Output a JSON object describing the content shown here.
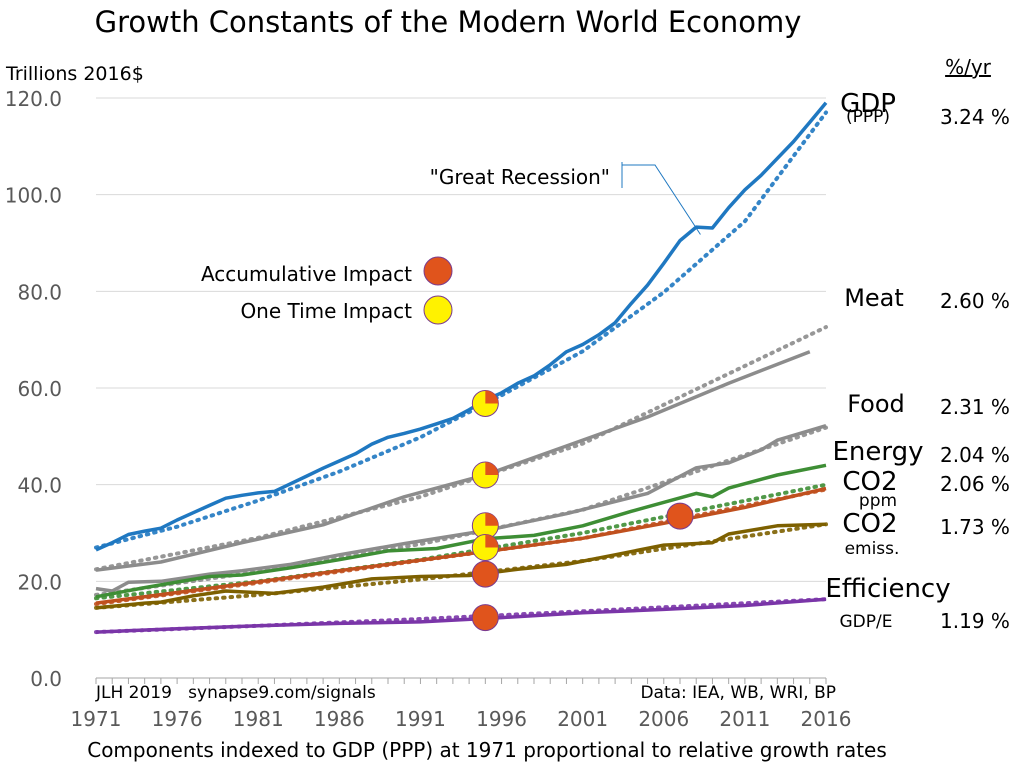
{
  "chart_data": {
    "type": "line",
    "title": "Growth Constants of the Modern World Economy",
    "ylabel": "Trillions 2016$",
    "xlabel": "Components indexed to GDP (PPP) at 1971 proportional to relative growth rates",
    "rate_header": "%/yr",
    "ylim": [
      0,
      120
    ],
    "xlim": [
      1971,
      2016
    ],
    "yticks": [
      "0.0",
      "20.0",
      "40.0",
      "60.0",
      "80.0",
      "100.0",
      "120.0"
    ],
    "xticks": [
      "1971",
      "1976",
      "1981",
      "1986",
      "1991",
      "1996",
      "2001",
      "2006",
      "2011",
      "2016"
    ],
    "grid": true,
    "credit_left": "JLH 2019   synapse9.com/signals",
    "credit_right": "Data: IEA, WB, WRI, BP",
    "legend": {
      "placement": "left",
      "items": [
        {
          "label": "Accumulative Impact",
          "color": "#E0541C"
        },
        {
          "label": "One Time Impact",
          "color": "#FFF200"
        }
      ]
    },
    "annotation": {
      "text": "\"Great Recession\"",
      "x": 2009,
      "y": 93
    },
    "series": [
      {
        "name": "GDP",
        "subname": "(PPP)",
        "rate": "3.24 %",
        "color": "#1F78C1",
        "x": [
          1971,
          1972,
          1973,
          1974,
          1975,
          1976,
          1977,
          1978,
          1979,
          1980,
          1981,
          1982,
          1983,
          1984,
          1985,
          1986,
          1987,
          1988,
          1989,
          1990,
          1991,
          1992,
          1993,
          1994,
          1995,
          1996,
          1997,
          1998,
          1999,
          2000,
          2001,
          2002,
          2003,
          2004,
          2005,
          2006,
          2007,
          2008,
          2009,
          2010,
          2011,
          2012,
          2013,
          2014,
          2015,
          2016
        ],
        "values": [
          26.5,
          28,
          29.7,
          30.4,
          31,
          32.7,
          34.2,
          35.7,
          37.2,
          37.8,
          38.3,
          38.6,
          40.2,
          41.8,
          43.4,
          44.9,
          46.4,
          48.4,
          49.8,
          50.6,
          51.5,
          52.6,
          53.7,
          55.5,
          57.5,
          59,
          61,
          62.5,
          64.8,
          67.5,
          69,
          71,
          73.5,
          77.5,
          81.3,
          85.8,
          90.5,
          93.3,
          93.1,
          97.3,
          101,
          104,
          107.5,
          111,
          115,
          119
        ]
      },
      {
        "name": "Meat",
        "rate": "2.60 %",
        "color": "#8C8C8C",
        "x": [
          1971,
          1975,
          1980,
          1985,
          1990,
          1995,
          2000,
          2005,
          2010,
          2015
        ],
        "values": [
          22.3,
          24,
          28,
          31.7,
          37.5,
          42,
          48,
          54,
          61,
          67.5
        ]
      },
      {
        "name": "Food",
        "rate": "2.31 %",
        "color": "#8C8C8C",
        "x": [
          1971,
          1972,
          1973,
          1975,
          1978,
          1980,
          1983,
          1986,
          1990,
          1995,
          2000,
          2005,
          2008,
          2010,
          2012,
          2013,
          2016
        ],
        "values": [
          18.5,
          18,
          19.8,
          20,
          21.5,
          22.2,
          23.5,
          25.5,
          27.8,
          30.5,
          34,
          38.2,
          43.5,
          44.5,
          47.2,
          49.2,
          52.2
        ]
      },
      {
        "name": "Energy",
        "rate": "2.04 %",
        "color": "#3E8E35",
        "x": [
          1971,
          1974,
          1978,
          1980,
          1983,
          1986,
          1989,
          1992,
          1995,
          1998,
          2001,
          2004,
          2008,
          2009,
          2010,
          2013,
          2016
        ],
        "values": [
          16.8,
          18.7,
          21,
          21.3,
          22.8,
          24.5,
          26.3,
          26.8,
          28.8,
          29.5,
          31.5,
          34.5,
          38.2,
          37.5,
          39.3,
          42,
          44
        ]
      },
      {
        "name": "CO2",
        "subname": "ppm",
        "rate": "2.06 %",
        "color": "#C0501E",
        "x": [
          1971,
          1976,
          1981,
          1986,
          1991,
          1996,
          2001,
          2006,
          2011,
          2016
        ],
        "values": [
          15.5,
          17.7,
          19.9,
          22.2,
          24.4,
          26.6,
          28.9,
          32,
          35.3,
          39.2
        ]
      },
      {
        "name": "CO2",
        "subname": "emiss.",
        "rate": "1.73 %",
        "color": "#7D6000",
        "x": [
          1971,
          1974,
          1975,
          1977,
          1979,
          1982,
          1985,
          1988,
          1991,
          1994,
          1997,
          2000,
          2003,
          2006,
          2009,
          2010,
          2013,
          2016
        ],
        "values": [
          14.5,
          15.5,
          15.7,
          17,
          18,
          17.5,
          18.8,
          20.5,
          21,
          21.2,
          22.5,
          23.5,
          25.5,
          27.5,
          28,
          29.8,
          31.5,
          31.8
        ]
      },
      {
        "name": "Efficiency",
        "subname": "GDP/E",
        "rate": "1.19 %",
        "color": "#7A35A8",
        "x": [
          1971,
          1976,
          1981,
          1986,
          1991,
          1996,
          2001,
          2006,
          2011,
          2016
        ],
        "values": [
          9.5,
          10.2,
          10.8,
          11.3,
          11.6,
          12.5,
          13.5,
          14.2,
          15,
          16.3
        ]
      }
    ],
    "trends": [
      {
        "series": "GDP",
        "x": [
          1971,
          1976,
          1981,
          1986,
          1991,
          1996,
          2001,
          2006,
          2011,
          2016
        ],
        "values": [
          27,
          31.3,
          36.7,
          42.7,
          49.8,
          58.5,
          67.6,
          79.8,
          94.5,
          117
        ]
      },
      {
        "series": "Meat",
        "x": [
          1971,
          1981,
          1991,
          2001,
          2016
        ],
        "values": [
          22.5,
          29,
          37.5,
          48.5,
          72.6
        ]
      },
      {
        "series": "Food",
        "x": [
          1971,
          1981,
          1991,
          2001,
          2016
        ],
        "values": [
          17.2,
          22,
          27.7,
          34.8,
          51.8
        ]
      },
      {
        "series": "Energy",
        "x": [
          1971,
          1981,
          1991,
          2001,
          2016
        ],
        "values": [
          16.5,
          20,
          24.5,
          30,
          40
        ]
      },
      {
        "series": "CO2 ppm",
        "x": [
          1971,
          1981,
          1991,
          2001,
          2016
        ],
        "values": [
          15.3,
          19.7,
          24.3,
          28.9,
          39
        ]
      },
      {
        "series": "CO2 emiss.",
        "x": [
          1971,
          1981,
          1991,
          2001,
          2016
        ],
        "values": [
          14.5,
          17.2,
          20.4,
          24.2,
          31.8
        ]
      },
      {
        "series": "Efficiency",
        "x": [
          1971,
          1981,
          1991,
          2001,
          2016
        ],
        "values": [
          9.5,
          10.8,
          12.2,
          13.8,
          16.3
        ]
      }
    ],
    "impact_markers": [
      {
        "kind": "one-time",
        "x": 1995,
        "y": 56.8
      },
      {
        "kind": "one-time",
        "x": 1995,
        "y": 42
      },
      {
        "kind": "one-time",
        "x": 1995,
        "y": 31.5
      },
      {
        "kind": "one-time",
        "x": 1995,
        "y": 27
      },
      {
        "kind": "accumulative",
        "x": 1995,
        "y": 21.5
      },
      {
        "kind": "accumulative",
        "x": 1995,
        "y": 12.5
      },
      {
        "kind": "accumulative",
        "x": 2007,
        "y": 33.5
      }
    ]
  }
}
